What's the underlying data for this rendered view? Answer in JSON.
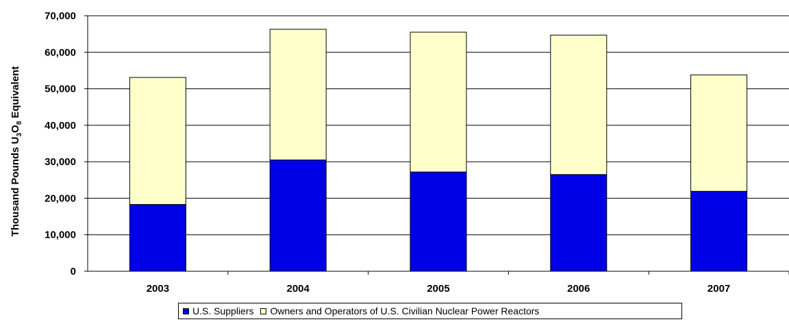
{
  "chart_data": {
    "type": "bar",
    "stacked": true,
    "categories": [
      "2003",
      "2004",
      "2005",
      "2006",
      "2007"
    ],
    "series": [
      {
        "name": "U.S. Suppliers",
        "color": "#0000e6",
        "values": [
          18300,
          30500,
          27200,
          26500,
          21900
        ]
      },
      {
        "name": "Owners and Operators of U.S. Civilian Nuclear Power Reactors",
        "color": "#ffffcc",
        "values": [
          34800,
          35800,
          38300,
          38200,
          31900
        ]
      }
    ],
    "ylabel_parts": [
      "Thousand Pounds U",
      "3",
      "O",
      "8",
      " Equivalent"
    ],
    "ylim": [
      0,
      70000
    ],
    "yticks": [
      0,
      10000,
      20000,
      30000,
      40000,
      50000,
      60000,
      70000
    ],
    "ytick_labels": [
      "0",
      "10,000",
      "20,000",
      "30,000",
      "40,000",
      "50,000",
      "60,000",
      "70,000"
    ],
    "grid": true,
    "legend_position": "bottom"
  }
}
